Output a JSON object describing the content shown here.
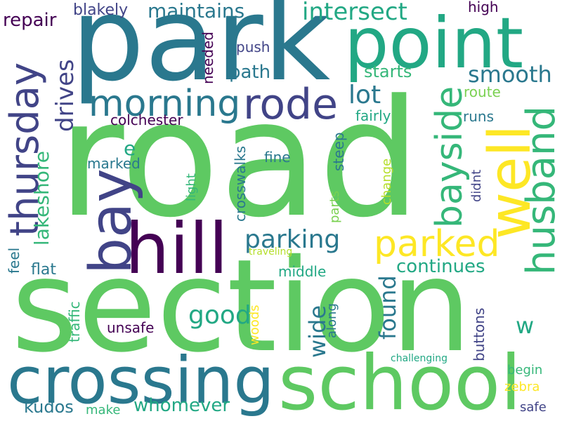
{
  "words": [
    {
      "text": "road",
      "color": "#5ec962"
    },
    {
      "text": "section",
      "color": "#5ec962"
    },
    {
      "text": "park",
      "color": "#2a788e"
    },
    {
      "text": "point",
      "color": "#22a884"
    },
    {
      "text": "school",
      "color": "#5ec962"
    },
    {
      "text": "crossing",
      "color": "#2a788e"
    },
    {
      "text": "hill",
      "color": "#440154"
    },
    {
      "text": "bay",
      "color": "#414487"
    },
    {
      "text": "well",
      "color": "#fde725"
    },
    {
      "text": "husband",
      "color": "#35b779"
    },
    {
      "text": "thursday",
      "color": "#414487"
    },
    {
      "text": "rode",
      "color": "#414487"
    },
    {
      "text": "morning",
      "color": "#2a788e"
    },
    {
      "text": "bayside",
      "color": "#35b779"
    },
    {
      "text": "parked",
      "color": "#fde725"
    },
    {
      "text": "intersect",
      "color": "#22a884"
    },
    {
      "text": "maintains",
      "color": "#2a788e"
    },
    {
      "text": "parking",
      "color": "#2a788e"
    },
    {
      "text": "smooth",
      "color": "#2a788e"
    },
    {
      "text": "lot",
      "color": "#2a788e"
    },
    {
      "text": "good",
      "color": "#22a884"
    },
    {
      "text": "found",
      "color": "#2a788e"
    },
    {
      "text": "wide",
      "color": "#2a788e"
    },
    {
      "text": "continues",
      "color": "#22a884"
    },
    {
      "text": "drives",
      "color": "#414487"
    },
    {
      "text": "lakeshore",
      "color": "#35b779"
    },
    {
      "text": "repair",
      "color": "#440154"
    },
    {
      "text": "blakely",
      "color": "#414487"
    },
    {
      "text": "path",
      "color": "#2a788e"
    },
    {
      "text": "starts",
      "color": "#35b779"
    },
    {
      "text": "whomever",
      "color": "#22a884"
    },
    {
      "text": "kudos",
      "color": "#2a788e"
    },
    {
      "text": "w",
      "color": "#22a884"
    },
    {
      "text": "e",
      "color": "#22a884"
    },
    {
      "text": "colchester",
      "color": "#440154"
    },
    {
      "text": "fairly",
      "color": "#22a884"
    },
    {
      "text": "runs",
      "color": "#2a788e"
    },
    {
      "text": "route",
      "color": "#7ad151"
    },
    {
      "text": "high",
      "color": "#440154"
    },
    {
      "text": "needed",
      "color": "#440154"
    },
    {
      "text": "push",
      "color": "#414487"
    },
    {
      "text": "marked",
      "color": "#2a788e"
    },
    {
      "text": "fine",
      "color": "#2a788e"
    },
    {
      "text": "crosswalks",
      "color": "#2a788e"
    },
    {
      "text": "steep",
      "color": "#2a788e"
    },
    {
      "text": "light",
      "color": "#35b779"
    },
    {
      "text": "change",
      "color": "#b5de2b"
    },
    {
      "text": "parts",
      "color": "#7ad151"
    },
    {
      "text": "didnt",
      "color": "#414487"
    },
    {
      "text": "traveling",
      "color": "#b5de2b"
    },
    {
      "text": "middle",
      "color": "#22a884"
    },
    {
      "text": "feel",
      "color": "#2a788e"
    },
    {
      "text": "flat",
      "color": "#2a788e"
    },
    {
      "text": "traffic",
      "color": "#35b779"
    },
    {
      "text": "unsafe",
      "color": "#440154"
    },
    {
      "text": "woods",
      "color": "#fde725"
    },
    {
      "text": "along",
      "color": "#2a788e"
    },
    {
      "text": "buttons",
      "color": "#414487"
    },
    {
      "text": "challenging",
      "color": "#22a884"
    },
    {
      "text": "begin",
      "color": "#35b779"
    },
    {
      "text": "zebra",
      "color": "#fde725"
    },
    {
      "text": "make",
      "color": "#35b779"
    },
    {
      "text": "safe",
      "color": "#414487"
    }
  ]
}
